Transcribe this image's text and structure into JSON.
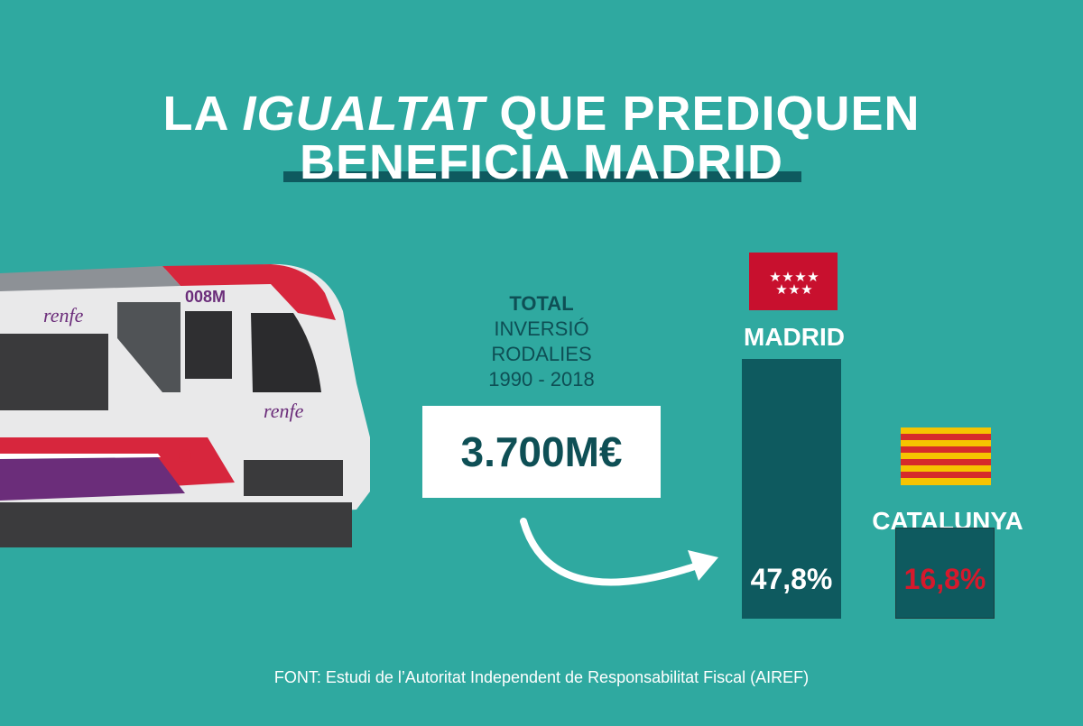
{
  "title": {
    "line1_pre": "LA ",
    "line1_italic": "IGUALTAT",
    "line1_post": " QUE PREDIQUEN",
    "line2": "BENEFICIA MADRID"
  },
  "train": {
    "number_label": "008M",
    "logo_text": "renfe"
  },
  "total": {
    "head": "TOTAL",
    "line2": "INVERSIÓ",
    "line3": "RODALIES",
    "line4": "1990 - 2018",
    "amount": "3.700M€"
  },
  "colors": {
    "background": "#2fa9a0",
    "bar": "#0e5a5f",
    "madrid_flag": "#c8102e",
    "catalunya_red": "#d62b2b",
    "catalunya_yellow": "#f6c400"
  },
  "chart_data": {
    "type": "bar",
    "categories": [
      "MADRID",
      "CATALUNYA"
    ],
    "values": [
      47.8,
      16.8
    ],
    "value_labels": [
      "47,8%",
      "16,8%"
    ],
    "value_label_colors": [
      "#ffffff",
      "#d6192c"
    ]
  },
  "source": "FONT: Estudi de l’Autoritat Independent de Responsabilitat Fiscal (AIREF)"
}
